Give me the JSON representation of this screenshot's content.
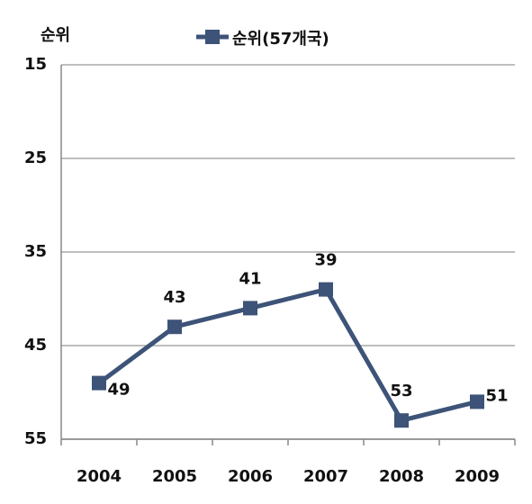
{
  "chart_data": {
    "type": "line",
    "y_axis_label": "순위",
    "categories": [
      "2004",
      "2005",
      "2006",
      "2007",
      "2008",
      "2009"
    ],
    "series": [
      {
        "name": "순위(57개국)",
        "color": "#3d5378",
        "values": [
          49,
          43,
          41,
          39,
          53,
          51
        ]
      }
    ],
    "ylim": [
      15,
      55
    ],
    "yticks": [
      15,
      25,
      35,
      45,
      55
    ],
    "y_inverted": true,
    "grid": true,
    "legend": "top"
  }
}
